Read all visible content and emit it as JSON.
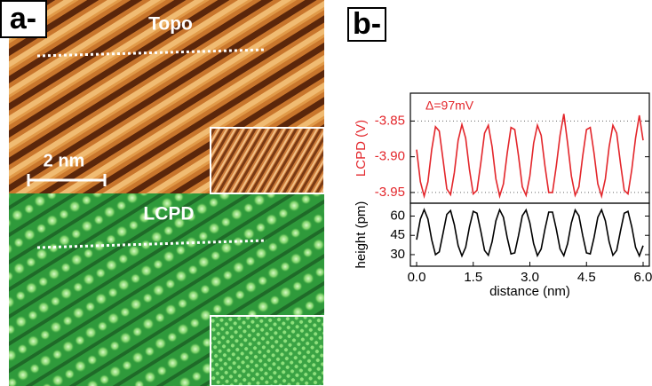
{
  "panel_a": {
    "label": "a-",
    "topo_label": "Topo",
    "lcpd_label": "LCPD",
    "scale_bar": "2 nm"
  },
  "panel_b_label": "b-",
  "chart_data": [
    {
      "type": "line",
      "y_label": "LCPD (V)",
      "annotation": "Δ=97mV",
      "color": "#e3262b",
      "x": [
        0,
        0.1,
        0.2,
        0.3,
        0.4,
        0.5,
        0.6,
        0.7,
        0.8,
        0.9,
        1,
        1.1,
        1.2,
        1.3,
        1.4,
        1.5,
        1.6,
        1.7,
        1.8,
        1.9,
        2,
        2.1,
        2.2,
        2.3,
        2.4,
        2.5,
        2.6,
        2.7,
        2.8,
        2.9,
        3,
        3.1,
        3.2,
        3.3,
        3.4,
        3.5,
        3.6,
        3.7,
        3.8,
        3.9,
        4,
        4.1,
        4.2,
        4.3,
        4.4,
        4.5,
        4.6,
        4.7,
        4.8,
        4.9,
        5,
        5.1,
        5.2,
        5.3,
        5.4,
        5.5,
        5.6,
        5.7,
        5.8,
        5.9,
        6
      ],
      "values": [
        -3.89,
        -3.935,
        -3.955,
        -3.935,
        -3.89,
        -3.858,
        -3.864,
        -3.904,
        -3.945,
        -3.953,
        -3.922,
        -3.877,
        -3.855,
        -3.874,
        -3.918,
        -3.952,
        -3.947,
        -3.909,
        -3.867,
        -3.856,
        -3.886,
        -3.931,
        -3.955,
        -3.938,
        -3.895,
        -3.859,
        -3.862,
        -3.899,
        -3.942,
        -3.954,
        -3.927,
        -3.881,
        -3.856,
        -3.87,
        -3.913,
        -3.95,
        -3.95,
        -3.913,
        -3.87,
        -3.84,
        -3.881,
        -3.927,
        -3.954,
        -3.942,
        -3.899,
        -3.862,
        -3.859,
        -3.895,
        -3.938,
        -3.955,
        -3.931,
        -3.886,
        -3.856,
        -3.867,
        -3.909,
        -3.947,
        -3.952,
        -3.918,
        -3.874,
        -3.842,
        -3.877
      ],
      "xlim": [
        -0.165,
        6.165
      ],
      "ylim": [
        -3.965,
        -3.811
      ],
      "yticks": [
        -3.85,
        {
          "value": -3.9,
          "label": "-3.90"
        },
        -3.95
      ],
      "hlines": [
        -3.85,
        -3.95
      ]
    },
    {
      "type": "line",
      "y_label": "height (pm)",
      "x_label": "distance (nm)",
      "color": "#000000",
      "x": [
        0,
        0.1,
        0.2,
        0.3,
        0.4,
        0.5,
        0.6,
        0.7,
        0.8,
        0.9,
        1,
        1.1,
        1.2,
        1.3,
        1.4,
        1.5,
        1.6,
        1.7,
        1.8,
        1.9,
        2,
        2.1,
        2.2,
        2.3,
        2.4,
        2.5,
        2.6,
        2.7,
        2.8,
        2.9,
        3,
        3.1,
        3.2,
        3.3,
        3.4,
        3.5,
        3.6,
        3.7,
        3.8,
        3.9,
        4,
        4.1,
        4.2,
        4.3,
        4.4,
        4.5,
        4.6,
        4.7,
        4.8,
        4.9,
        5,
        5.1,
        5.2,
        5.3,
        5.4,
        5.5,
        5.6,
        5.7,
        5.8,
        5.9,
        6
      ],
      "values": [
        41.6,
        57.7,
        65,
        57.7,
        41.6,
        30,
        32.2,
        46.6,
        61.3,
        64.3,
        53.2,
        37,
        29,
        35.7,
        51.6,
        63.7,
        62.2,
        48.3,
        33.3,
        29.5,
        40,
        56.3,
        64.9,
        59,
        43.2,
        30.6,
        31.4,
        44.9,
        60.2,
        64.7,
        54.7,
        38.5,
        29.2,
        34.4,
        49.9,
        63.1,
        63.1,
        49.9,
        34.4,
        29.2,
        38.5,
        54.7,
        64.7,
        60.2,
        44.9,
        31.4,
        30.6,
        43.2,
        59,
        64.9,
        56.3,
        40,
        29.5,
        33.3,
        48.3,
        62.2,
        63.7,
        51.6,
        35.7,
        29,
        37
      ],
      "xlim": [
        -0.165,
        6.165
      ],
      "ylim": [
        21,
        70
      ],
      "xticks": [
        {
          "value": 0,
          "label": "0.0"
        },
        1.5,
        {
          "value": 3,
          "label": "3.0"
        },
        4.5,
        {
          "value": 6,
          "label": "6.0"
        }
      ],
      "yticks": [
        30,
        45,
        60
      ]
    }
  ]
}
